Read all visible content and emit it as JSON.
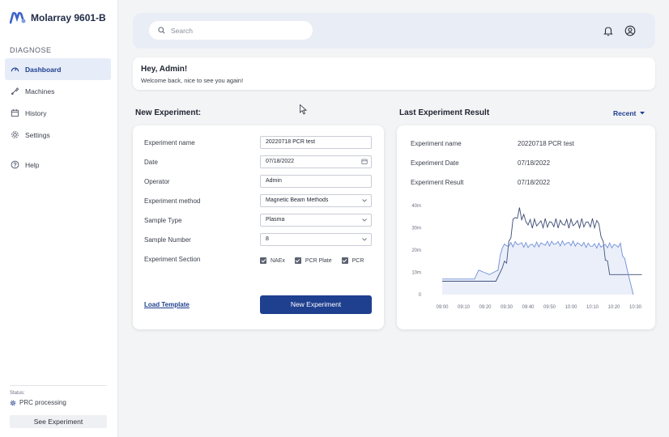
{
  "app": {
    "title": "Molarray 9601-B",
    "brand_color": "#1f3f8f",
    "accent_light": "#7f9de0"
  },
  "sidebar": {
    "section_label": "DIAGNOSE",
    "items": [
      {
        "label": "Dashboard",
        "icon": "gauge-icon",
        "active": true
      },
      {
        "label": "Machines",
        "icon": "tool-icon",
        "active": false
      },
      {
        "label": "History",
        "icon": "calendar-icon",
        "active": false
      },
      {
        "label": "Settings",
        "icon": "gear-icon",
        "active": false
      }
    ],
    "help": {
      "label": "Help",
      "icon": "help-icon"
    },
    "status": {
      "label": "Status:",
      "value": "PRC processing"
    },
    "see_button": "See Experiment"
  },
  "topbar": {
    "search_placeholder": "Search",
    "bell_icon": "bell-icon",
    "user_icon": "user-icon"
  },
  "welcome": {
    "title": "Hey, Admin!",
    "subtitle": "Welcome back, nice to see you again!"
  },
  "new_experiment": {
    "heading": "New Experiment:",
    "fields": {
      "name": {
        "label": "Experiment name",
        "value": "20220718 PCR test"
      },
      "date": {
        "label": "Date",
        "value": "07/18/2022"
      },
      "operator": {
        "label": "Operator",
        "value": "Admin"
      },
      "method": {
        "label": "Experiment method",
        "value": "Magnetic Beam Methods"
      },
      "sample_type": {
        "label": "Sample Type",
        "value": "Plasma"
      },
      "sample_number": {
        "label": "Sample Number",
        "value": "8"
      }
    },
    "section": {
      "label": "Experiment Section",
      "options": [
        {
          "label": "NAEx",
          "checked": true
        },
        {
          "label": "PCR Plate",
          "checked": true
        },
        {
          "label": "PCR",
          "checked": true
        }
      ]
    },
    "load_template": "Load Template",
    "submit_label": "New Experiment"
  },
  "last_result": {
    "heading": "Last Experiment Result",
    "filter_label": "Recent",
    "rows": [
      {
        "label": "Experiment name",
        "value": "20220718 PCR test"
      },
      {
        "label": "Experiment Date",
        "value": "07/18/2022"
      },
      {
        "label": "Experiment Result",
        "value": "07/18/2022"
      }
    ]
  },
  "chart_data": {
    "type": "line",
    "x": [
      "09:00",
      "09:10",
      "09:20",
      "09:30",
      "09:40",
      "09:50",
      "10:00",
      "10:10",
      "10:20",
      "10:30"
    ],
    "y_ticks": [
      "40m",
      "30m",
      "20m",
      "10m",
      "0"
    ],
    "ylim": [
      0,
      40
    ],
    "grid": false,
    "legend": "none",
    "series": [
      {
        "color": "#3b4a73",
        "fill": false,
        "points": [
          [
            0,
            6
          ],
          [
            1,
            6
          ],
          [
            1.5,
            6
          ],
          [
            2,
            6
          ],
          [
            2.5,
            6
          ],
          [
            3,
            16
          ],
          [
            3.3,
            33
          ],
          [
            3.6,
            37
          ],
          [
            4,
            32
          ],
          [
            5,
            32
          ],
          [
            6,
            32
          ],
          [
            7,
            32
          ],
          [
            7.3,
            32
          ],
          [
            7.5,
            22
          ],
          [
            7.8,
            9
          ],
          [
            8.5,
            9
          ],
          [
            9.3,
            9
          ]
        ]
      },
      {
        "color": "#6f8fd8",
        "fill": true,
        "points": [
          [
            0,
            7
          ],
          [
            1,
            7
          ],
          [
            1.5,
            7
          ],
          [
            1.7,
            11
          ],
          [
            2.2,
            9
          ],
          [
            2.6,
            11
          ],
          [
            2.8,
            22
          ],
          [
            3,
            22
          ],
          [
            3.5,
            23
          ],
          [
            4,
            22
          ],
          [
            5,
            23
          ],
          [
            6,
            23
          ],
          [
            7,
            22
          ],
          [
            8,
            22
          ],
          [
            8.3,
            22
          ],
          [
            8.6,
            12
          ],
          [
            8.9,
            0
          ]
        ]
      }
    ]
  }
}
